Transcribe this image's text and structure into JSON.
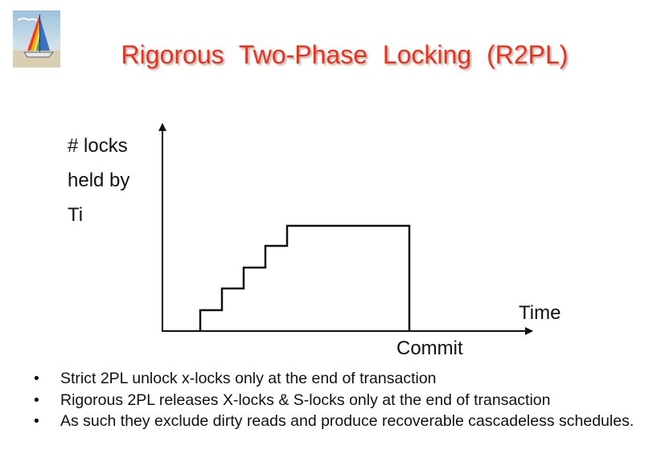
{
  "slide": {
    "title": "Rigorous  Two-Phase  Locking  (R2PL)"
  },
  "diagram": {
    "y_label_lines": [
      "# locks",
      "held by",
      "Ti"
    ],
    "x_label": "Time",
    "commit_label": "Commit"
  },
  "bullets": [
    "Strict 2PL unlock x-locks only at the end of transaction",
    "Rigorous 2PL releases X-locks & S-locks only at the end of transaction",
    "As such they exclude dirty reads and produce recoverable cascadeless schedules."
  ],
  "colors": {
    "title": "#e8321e",
    "lines": "#111111"
  }
}
